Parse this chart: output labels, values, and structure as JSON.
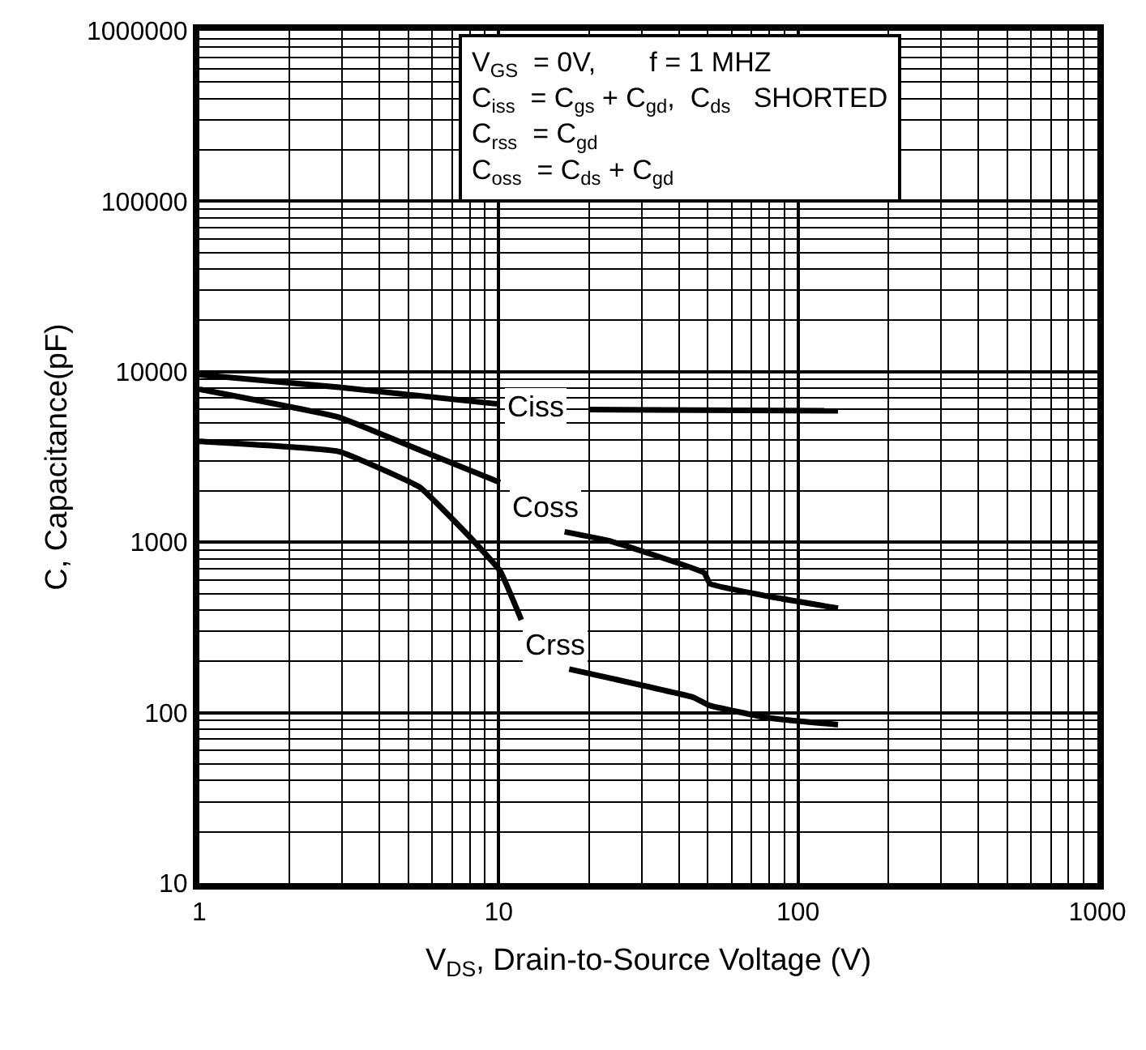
{
  "chart_data": {
    "type": "line",
    "xlabel": "V$_{DS}$, Drain-to-Source Voltage (V)",
    "ylabel": "C, Capacitance(pF)",
    "log": "xy",
    "grid": true,
    "legend": false,
    "marker": "none",
    "line_style": "solid",
    "xlim": [
      1,
      1000
    ],
    "xticks": [
      1,
      10,
      100,
      1000
    ],
    "ylim": [
      10,
      1000000
    ],
    "yticks": [
      10,
      100,
      1000,
      10000,
      100000,
      1000000
    ],
    "series": [
      {
        "name": "Ciss",
        "color": "#000000",
        "x": [
          1,
          2.93,
          10.1,
          12,
          20,
          136
        ],
        "values": [
          9600,
          8100,
          6450,
          null,
          6000,
          5900
        ]
      },
      {
        "name": "Coss",
        "color": "#000000",
        "x": [
          1,
          2.93,
          5.45,
          10.1,
          13,
          16.6,
          23.3,
          48.6,
          50.8,
          80,
          136
        ],
        "values": [
          7900,
          5400,
          3470,
          2240,
          null,
          1150,
          1020,
          660,
          570,
          480,
          410
        ]
      },
      {
        "name": "Crss",
        "color": "#000000",
        "x": [
          1,
          2.93,
          5.45,
          7.9,
          10.1,
          11.9,
          14,
          17.2,
          23.3,
          44.7,
          50.8,
          80,
          136
        ],
        "values": [
          3900,
          3400,
          2100,
          1100,
          680,
          350,
          null,
          180,
          160,
          123,
          110,
          93,
          85
        ]
      }
    ],
    "annotations": [
      "V$_{GS}$  = 0V,       f = 1 MHZ",
      "C$_{iss}$  = C$_{gs}$ + C$_{gd}$,  C$_{ds}$   SHORTED",
      "C$_{rss}$  = C$_{gd}$",
      "C$_{oss}$  = C$_{ds}$ + C$_{gd}$"
    ]
  }
}
